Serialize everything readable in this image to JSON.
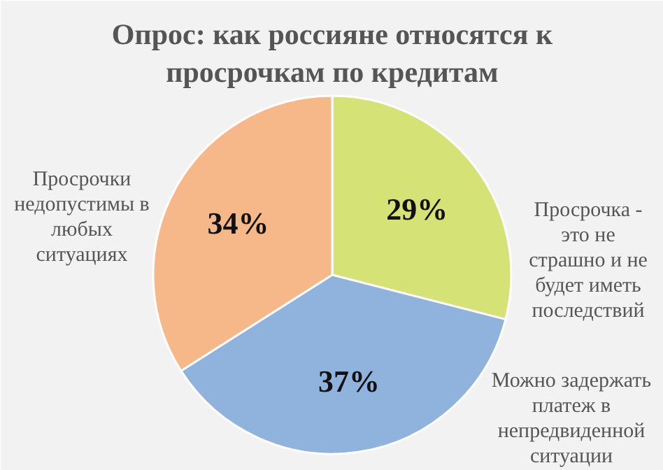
{
  "chart_data": {
    "type": "pie",
    "title": "Опрос: как россияне относятся к просрочкам по кредитам",
    "categories": [
      "Просрочка - это не страшно и не будет иметь последствий",
      "Можно задержать платеж в непредвиденной ситуации",
      "Просрочки недопустимы в любых ситуациях"
    ],
    "values": [
      29,
      37,
      34
    ],
    "colors": [
      "#d4e276",
      "#8fb3dc",
      "#f6b889"
    ],
    "value_labels": [
      "29%",
      "37%",
      "34%"
    ]
  }
}
